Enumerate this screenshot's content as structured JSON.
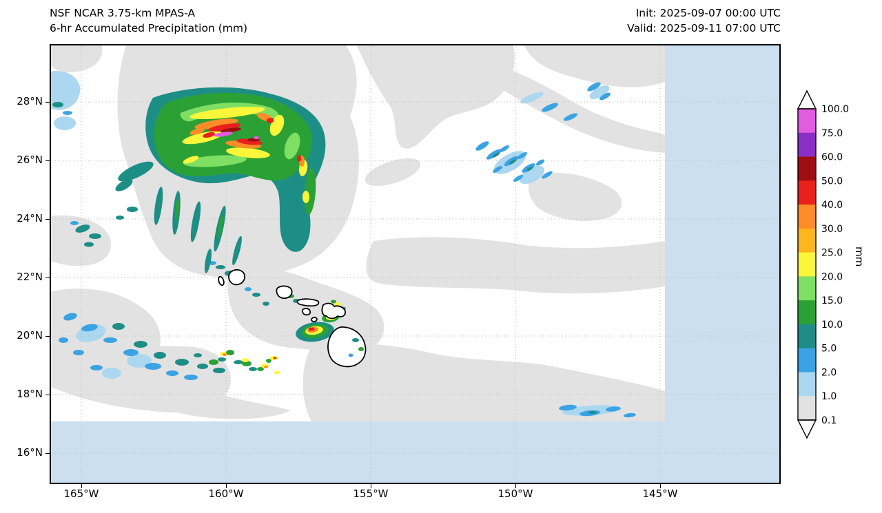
{
  "header": {
    "title_line1": "NSF NCAR 3.75-km MPAS-A",
    "title_line2": "6-hr Accumulated Precipitation (mm)",
    "init_label": "Init: 2025-09-07 00:00 UTC",
    "valid_label": "Valid: 2025-09-11 07:00 UTC"
  },
  "map": {
    "y_ticks": [
      "28°N",
      "26°N",
      "24°N",
      "22°N",
      "20°N",
      "18°N",
      "16°N"
    ],
    "x_ticks": [
      "165°W",
      "160°W",
      "155°W",
      "150°W",
      "145°W"
    ]
  },
  "colorbar": {
    "unit": "mm",
    "ticks": [
      "100.0",
      "75.0",
      "60.0",
      "50.0",
      "40.0",
      "30.0",
      "25.0",
      "20.0",
      "15.0",
      "10.0",
      "5.0",
      "2.0",
      "1.0",
      "0.1"
    ],
    "segments": [
      "#e25ce2",
      "#8b2fc9",
      "#9e0d12",
      "#e8211d",
      "#fd8d27",
      "#ffb51e",
      "#fbf63a",
      "#7fdf63",
      "#2ba135",
      "#1d8e86",
      "#3ba3e3",
      "#abd7f0",
      "#e2e2e2"
    ],
    "over_color": "#ffffff",
    "under_color": "#ffffff"
  },
  "colors": {
    "ocean": "#ccdff0",
    "drizzle": "#e2e2e2",
    "grid": "#b9b9b9",
    "frame": "#000000"
  },
  "chart_data": {
    "type": "heatmap",
    "title": "6-hr Accumulated Precipitation (mm)",
    "model": "NSF NCAR 3.75-km MPAS-A",
    "init": "2025-09-07 00:00 UTC",
    "valid": "2025-09-11 07:00 UTC",
    "unit": "mm",
    "x_axis": {
      "ticks": [
        "165°W",
        "160°W",
        "155°W",
        "150°W",
        "145°W"
      ],
      "range_deg_west": [
        166.2,
        140.8
      ]
    },
    "y_axis": {
      "ticks": [
        "16°N",
        "18°N",
        "20°N",
        "22°N",
        "24°N",
        "26°N",
        "28°N"
      ],
      "range_deg_north": [
        15.0,
        30.0
      ]
    },
    "colorbar_levels_mm": [
      0.1,
      1.0,
      2.0,
      5.0,
      10.0,
      15.0,
      20.0,
      25.0,
      30.0,
      40.0,
      50.0,
      60.0,
      75.0,
      100.0
    ],
    "legend_position": "right",
    "grid": "dotted",
    "features": [
      {
        "name": "tropical-cyclone-precip-shield",
        "approx_center": "26.5°N 160.5°W",
        "max_intensity_mm": ">75"
      },
      {
        "name": "curved-outer-rainband-east-of-cyclone",
        "intensity_mm": "5-40"
      },
      {
        "name": "spiral-band-striations-south-of-cyclone",
        "intensity_mm": "5-15"
      },
      {
        "name": "scattered-trade-showers-southwest-of-hawaii",
        "intensity_mm": "2-30"
      },
      {
        "name": "convective-cell-west-of-hawaii-island",
        "intensity_mm": "40-50"
      },
      {
        "name": "light-shower-streaks-northeast-quadrant",
        "intensity_mm": "1-10"
      },
      {
        "name": "hawaiian-islands-coastlines"
      },
      {
        "name": "model-domain-edge",
        "outside_fill": "light-blue",
        "south_of": "17°N",
        "east_of": "145.3°W"
      }
    ]
  }
}
